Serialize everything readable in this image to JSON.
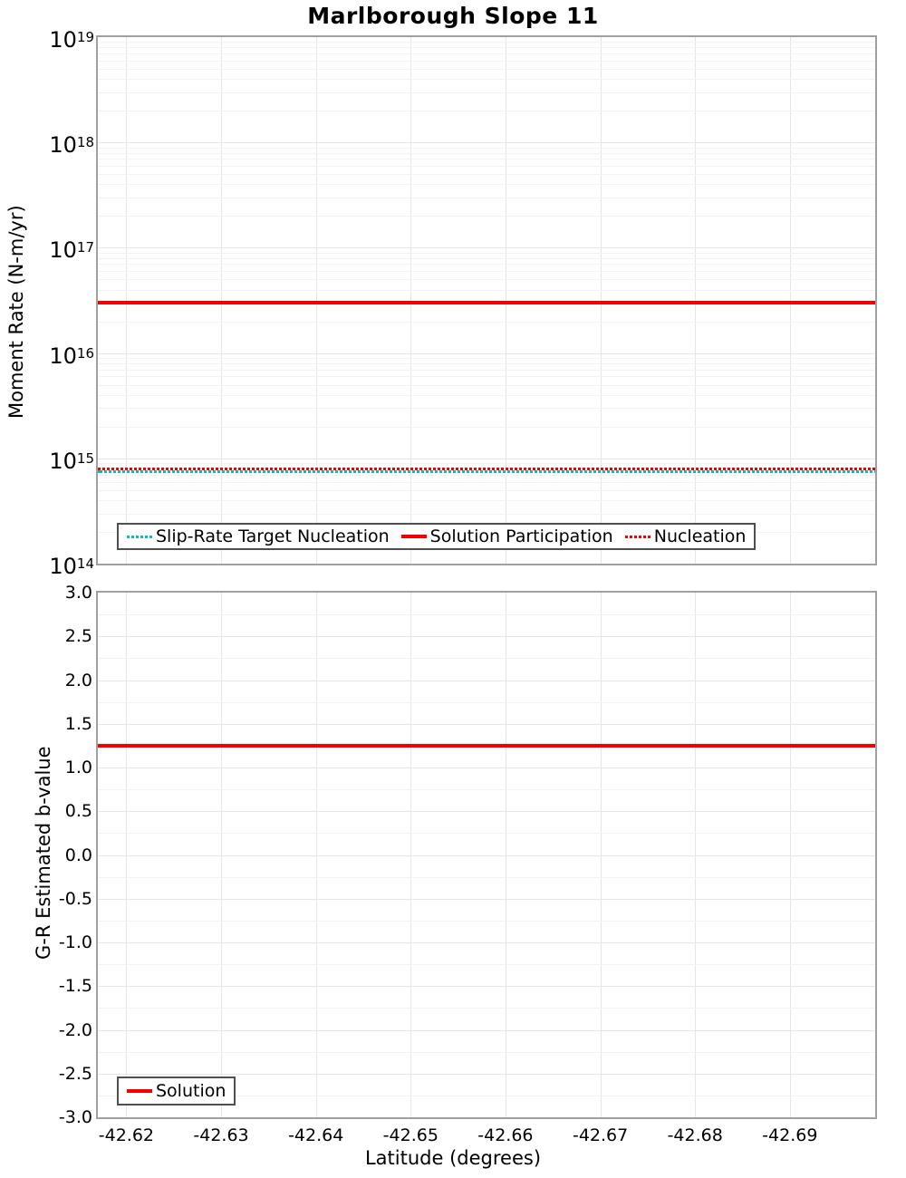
{
  "title": "Marlborough Slope 11",
  "colors": {
    "series_red": "#f40000",
    "series_teal": "#17b6b6",
    "grid_major": "#e6e6e6",
    "grid_minor": "#f2f2f2",
    "spine": "#a0a0a0",
    "legend_border": "#4f4f4f",
    "text": "#000000"
  },
  "chart_data": [
    {
      "type": "line",
      "id": "moment-rate",
      "title": "Marlborough Slope 11",
      "ylabel": "Moment Rate (N-m/yr)",
      "yscale": "log",
      "ylim": [
        100000000000000.0,
        1e+19
      ],
      "ytick_exponents": [
        19,
        18,
        17,
        16,
        15,
        14
      ],
      "xlim": [
        -42.617,
        -42.699
      ],
      "xticks": [
        -42.62,
        -42.63,
        -42.64,
        -42.65,
        -42.66,
        -42.67,
        -42.68,
        -42.69
      ],
      "xtick_labels_shown": false,
      "grid": true,
      "legend_position": "bottom-left",
      "series": [
        {
          "name": "Slip-Rate Target Nucleation",
          "style": "dotted",
          "color": "#17b6b6",
          "value": 800000000000000.0
        },
        {
          "name": "Solution Participation",
          "style": "solid",
          "color": "#f40000",
          "value": 3e+16
        },
        {
          "name": "Nucleation",
          "style": "dotted",
          "color": "#f40000",
          "value": 800000000000000.0
        }
      ]
    },
    {
      "type": "line",
      "id": "b-value",
      "ylabel": "G-R Estimated b-value",
      "xlabel": "Latitude (degrees)",
      "yscale": "linear",
      "ylim": [
        -3.0,
        3.0
      ],
      "yticks": [
        3.0,
        2.5,
        2.0,
        1.5,
        1.0,
        0.5,
        0.0,
        -0.5,
        -1.0,
        -1.5,
        -2.0,
        -2.5,
        -3.0
      ],
      "ytick_labels": [
        "3.0",
        "2.5",
        "2.0",
        "1.5",
        "1.0",
        "0.5",
        "0.0",
        "-0.5",
        "-1.0",
        "-1.5",
        "-2.0",
        "-2.5",
        "-3.0"
      ],
      "xlim": [
        -42.617,
        -42.699
      ],
      "xticks": [
        -42.62,
        -42.63,
        -42.64,
        -42.65,
        -42.66,
        -42.67,
        -42.68,
        -42.69
      ],
      "xtick_labels": [
        "-42.62",
        "-42.63",
        "-42.64",
        "-42.65",
        "-42.66",
        "-42.67",
        "-42.68",
        "-42.69"
      ],
      "grid": true,
      "legend_position": "bottom-left",
      "series": [
        {
          "name": "Solution",
          "style": "solid",
          "color": "#f40000",
          "value": 1.25
        }
      ]
    }
  ]
}
